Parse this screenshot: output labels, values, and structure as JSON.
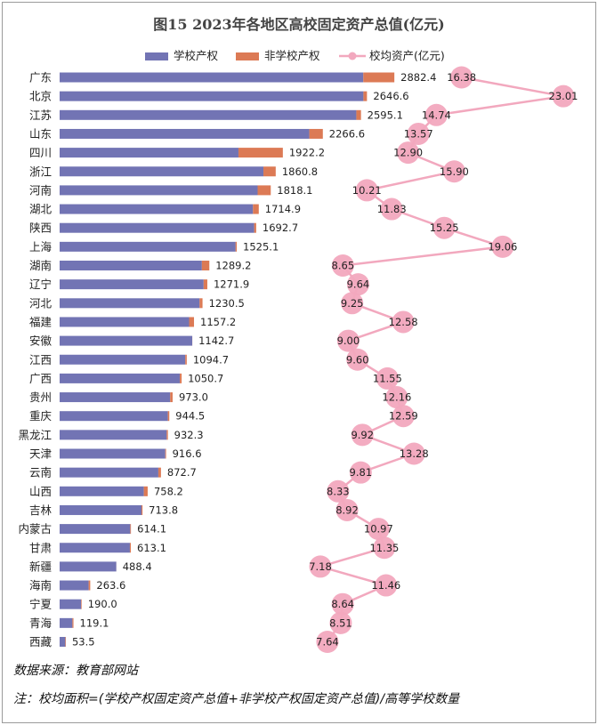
{
  "chart_data": {
    "type": "bar",
    "orientation": "horizontal",
    "stacked": true,
    "title": "图15  2023年各地区高校固定资产总值(亿元)",
    "categories": [
      "广东",
      "北京",
      "江苏",
      "山东",
      "四川",
      "浙江",
      "河南",
      "湖北",
      "陕西",
      "上海",
      "湖南",
      "辽宁",
      "河北",
      "福建",
      "安徽",
      "江西",
      "广西",
      "贵州",
      "重庆",
      "黑龙江",
      "天津",
      "云南",
      "山西",
      "吉林",
      "内蒙古",
      "甘肃",
      "新疆",
      "海南",
      "宁夏",
      "青海",
      "西藏"
    ],
    "totals": [
      2882.4,
      2646.6,
      2595.1,
      2266.6,
      1922.2,
      1860.8,
      1818.1,
      1714.9,
      1692.7,
      1525.1,
      1289.2,
      1271.9,
      1230.5,
      1157.2,
      1142.7,
      1094.7,
      1050.7,
      973.0,
      944.5,
      932.3,
      916.6,
      872.7,
      758.2,
      713.8,
      614.1,
      613.1,
      488.4,
      263.6,
      190.0,
      119.1,
      53.5
    ],
    "total_labels": [
      "2882.4",
      "2646.6",
      "2595.1",
      "2266.6",
      "1922.2",
      "1860.8",
      "1818.1",
      "1714.9",
      "1692.7",
      "1525.1",
      "1289.2",
      "1271.9",
      "1230.5",
      "1157.2",
      "1142.7",
      "1094.7",
      "1050.7",
      "973.0",
      "944.5",
      "932.3",
      "916.6",
      "872.7",
      "758.2",
      "713.8",
      "614.1",
      "613.1",
      "488.4",
      "263.6",
      "190.0",
      "119.1",
      "53.5"
    ],
    "series": [
      {
        "name": "学校产权",
        "color": "#7274b4",
        "values": [
          2615,
          2616,
          2555,
          2150,
          1540,
          1755,
          1705,
          1665,
          1675,
          1515,
          1225,
          1240,
          1205,
          1115,
          1142,
          1082,
          1035,
          952,
          932,
          922,
          910,
          850,
          725,
          705,
          608,
          605,
          488,
          250,
          185,
          110,
          49
        ]
      },
      {
        "name": "非学校产权",
        "color": "#dc7a55",
        "values": [
          267.4,
          30.6,
          40.1,
          116.6,
          382.2,
          105.8,
          113.1,
          49.9,
          17.7,
          10.1,
          64.2,
          31.9,
          25.5,
          42.2,
          0.7,
          12.7,
          15.7,
          21.0,
          12.5,
          10.3,
          6.6,
          22.7,
          33.2,
          8.8,
          6.1,
          8.1,
          0.4,
          13.6,
          5.0,
          9.1,
          4.5
        ]
      },
      {
        "name": "校均资产(亿元)",
        "color": "#f2a8be",
        "type": "line",
        "values": [
          16.38,
          23.01,
          14.74,
          13.57,
          12.9,
          15.9,
          10.21,
          11.83,
          15.25,
          19.06,
          8.65,
          9.64,
          9.25,
          12.58,
          9.0,
          9.6,
          11.55,
          12.16,
          12.59,
          9.92,
          13.28,
          9.81,
          8.33,
          8.92,
          10.97,
          11.35,
          7.18,
          11.46,
          8.64,
          8.51,
          7.64
        ],
        "labels": [
          "16.38",
          "23.01",
          "14.74",
          "13.57",
          "12.90",
          "15.90",
          "10.21",
          "11.83",
          "15.25",
          "19.06",
          "8.65",
          "9.64",
          "9.25",
          "12.58",
          "9.00",
          "9.60",
          "11.55",
          "12.16",
          "12.59",
          "9.92",
          "13.28",
          "9.81",
          "8.33",
          "8.92",
          "10.97",
          "11.35",
          "7.18",
          "11.46",
          "8.64",
          "8.51",
          "7.64"
        ]
      }
    ],
    "legend_position": "top",
    "grid": false
  },
  "colors": {
    "bar_school": "#7274b4",
    "bar_nonschool": "#dc7a55",
    "avg_line": "#f2a8be",
    "avg_marker": "#f2a8be"
  },
  "footer": {
    "source": "数据来源：教育部网站",
    "note": "注：校均面积=(学校产权固定资产总值+非学校产权固定资产总值)/高等学校数量"
  }
}
